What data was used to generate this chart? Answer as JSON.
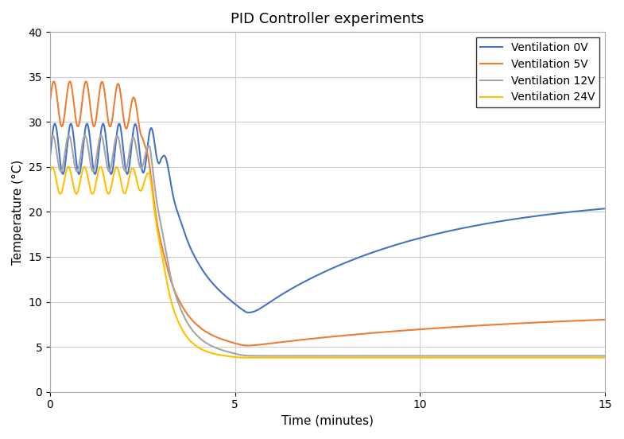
{
  "title": "PID Controller experiments",
  "xlabel": "Time (minutes)",
  "ylabel": "Temperature (°C)",
  "xlim": [
    0,
    15
  ],
  "ylim": [
    0,
    40
  ],
  "xticks": [
    0,
    5,
    10,
    15
  ],
  "yticks": [
    0,
    5,
    10,
    15,
    20,
    25,
    30,
    35,
    40
  ],
  "background_color": "#ffffff",
  "grid_color": "#cccccc",
  "series": [
    {
      "label": "Ventilation 0V",
      "color": "#4472c4"
    },
    {
      "label": "Ventilation 5V",
      "color": "#ed7d31"
    },
    {
      "label": "Ventilation 12V",
      "color": "#a5a5a5"
    },
    {
      "label": "Ventilation 24V",
      "color": "#ffc000"
    }
  ],
  "legend_loc": "upper right",
  "title_fontsize": 13,
  "label_fontsize": 11,
  "tick_fontsize": 10
}
